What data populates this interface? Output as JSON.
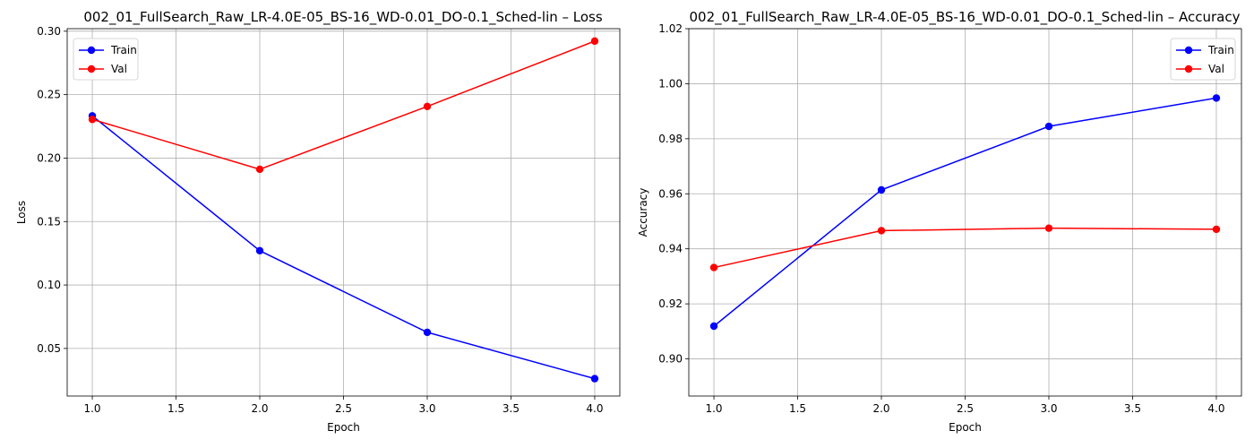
{
  "chart_data": [
    {
      "type": "line",
      "title": "002_01_FullSearch_Raw_LR-4.0E-05_BS-16_WD-0.01_DO-0.1_Sched-lin – Loss",
      "xlabel": "Epoch",
      "ylabel": "Loss",
      "x": [
        1,
        2,
        3,
        4
      ],
      "xlim": [
        0.85,
        4.15
      ],
      "ylim": [
        0.0125,
        0.302
      ],
      "xticks": [
        "1.0",
        "1.5",
        "2.0",
        "2.5",
        "3.0",
        "3.5",
        "4.0"
      ],
      "yticks": [
        "0.05",
        "0.10",
        "0.15",
        "0.20",
        "0.25",
        "0.30"
      ],
      "grid": true,
      "legend_position": "top-left",
      "series": [
        {
          "name": "Train",
          "color": "#0000ff",
          "values": [
            0.2333,
            0.127,
            0.0627,
            0.0262
          ]
        },
        {
          "name": "Val",
          "color": "#ff0000",
          "values": [
            0.2305,
            0.1912,
            0.2407,
            0.2922
          ]
        }
      ]
    },
    {
      "type": "line",
      "title": "002_01_FullSearch_Raw_LR-4.0E-05_BS-16_WD-0.01_DO-0.1_Sched-lin – Accuracy",
      "xlabel": "Epoch",
      "ylabel": "Accuracy",
      "x": [
        1,
        2,
        3,
        4
      ],
      "xlim": [
        0.85,
        4.15
      ],
      "ylim": [
        0.8865,
        1.02
      ],
      "xticks": [
        "1.0",
        "1.5",
        "2.0",
        "2.5",
        "3.0",
        "3.5",
        "4.0"
      ],
      "yticks": [
        "0.90",
        "0.92",
        "0.94",
        "0.96",
        "0.98",
        "1.00",
        "1.02"
      ],
      "grid": true,
      "legend_position": "top-right",
      "series": [
        {
          "name": "Train",
          "color": "#0000ff",
          "values": [
            0.9119,
            0.9614,
            0.9845,
            0.9948
          ]
        },
        {
          "name": "Val",
          "color": "#ff0000",
          "values": [
            0.9332,
            0.9466,
            0.9475,
            0.9471
          ]
        }
      ]
    }
  ]
}
